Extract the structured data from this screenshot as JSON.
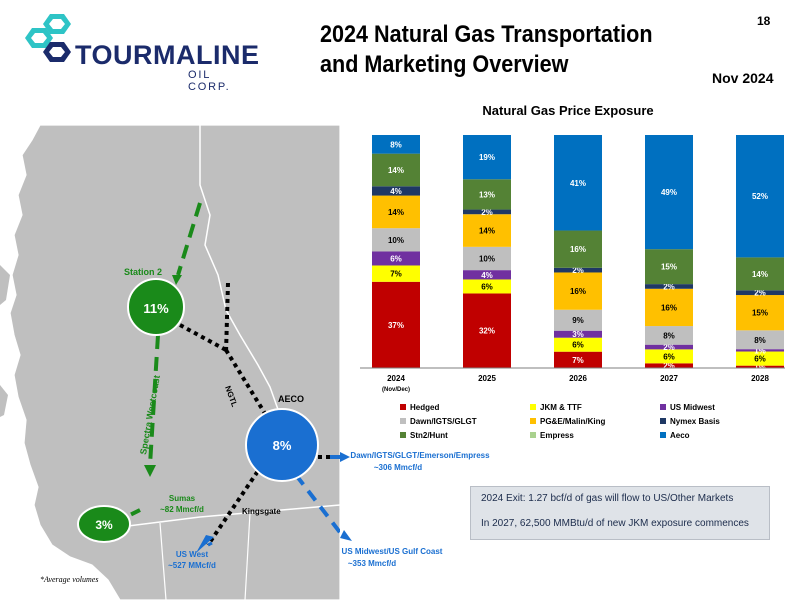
{
  "header": {
    "title_line1": "2024 Natural Gas Transportation",
    "title_line2": "and Marketing Overview",
    "page_number": "18",
    "date": "Nov 2024"
  },
  "logo": {
    "name": "TOURMALINE",
    "sub": "OIL CORP."
  },
  "map": {
    "station2_label": "Station 2",
    "station2_pct": "11%",
    "aeco_label": "AECO",
    "aeco_pct": "8%",
    "sumas_pct": "3%",
    "spectra_label": "Spectra Westcoast",
    "ngtl_label": "NGTL",
    "kingsgate_label": "Kingsgate",
    "sumas_label_line1": "Sumas",
    "sumas_label_line2": "~82 Mmcf/d",
    "uswest_line1": "US West",
    "uswest_line2": "~527 MMcf/d",
    "usmidwest_line1": "US Midwest/US Gulf Coast",
    "usmidwest_line2": "~353 Mmcf/d",
    "dawn_line1": "Dawn/IGTS/GLGT/Emerson/Empress",
    "dawn_line2": "~306 Mmcf/d",
    "colors": {
      "land": "#bfbfbf",
      "water": "#ffffff",
      "green": "#1a8a1a",
      "blue": "#1a6fd1",
      "black": "#000000"
    }
  },
  "chart_data": {
    "type": "bar",
    "title": "Natural Gas Price Exposure",
    "categories": [
      "2024",
      "2025",
      "2026",
      "2027",
      "2028"
    ],
    "category_sublabels": [
      "(Nov/Dec)",
      "",
      "",
      "",
      ""
    ],
    "ylim": [
      0,
      100
    ],
    "stacked": true,
    "series": [
      {
        "name": "Hedged",
        "color": "#c00000",
        "values": [
          37,
          32,
          7,
          2,
          1
        ],
        "labels": [
          "37%",
          "32%",
          "7%",
          "2%",
          "1%"
        ]
      },
      {
        "name": "JKM & TTF",
        "color": "#ffff00",
        "values": [
          7,
          6,
          6,
          6,
          6
        ],
        "labels": [
          "7%",
          "6%",
          "6%",
          "6%",
          "6%"
        ]
      },
      {
        "name": "US Midwest",
        "color": "#7030a0",
        "values": [
          6,
          4,
          3,
          2,
          1
        ],
        "labels": [
          "6%",
          "4%",
          "3%",
          "2%",
          "1%"
        ]
      },
      {
        "name": "Dawn/IGTS/GLGT",
        "color": "#bfbfbf",
        "values": [
          10,
          10,
          9,
          8,
          8
        ],
        "labels": [
          "10%",
          "10%",
          "9%",
          "8%",
          "8%"
        ]
      },
      {
        "name": "PG&E/Malin/King",
        "color": "#ffc000",
        "values": [
          14,
          14,
          16,
          16,
          15
        ],
        "labels": [
          "14%",
          "14%",
          "16%",
          "16%",
          "15%"
        ]
      },
      {
        "name": "Nymex Basis",
        "color": "#1f3864",
        "values": [
          4,
          2,
          2,
          2,
          2
        ],
        "labels": [
          "4%",
          "2%",
          "2%",
          "2%",
          "2%"
        ]
      },
      {
        "name": "Stn2/Hunt",
        "color": "#548235",
        "values": [
          14,
          13,
          16,
          15,
          14
        ],
        "labels": [
          "14%",
          "13%",
          "16%",
          "15%",
          "14%"
        ]
      },
      {
        "name": "Empress",
        "color": "#a9d18e",
        "values": [
          0,
          0,
          0,
          0,
          0
        ],
        "labels": [
          "",
          "",
          "",
          "",
          ""
        ]
      },
      {
        "name": "Aeco",
        "color": "#0070c0",
        "values": [
          8,
          19,
          41,
          49,
          52
        ],
        "labels": [
          "8%",
          "19%",
          "41%",
          "49%",
          "52%"
        ]
      }
    ],
    "legend": [
      {
        "name": "Hedged",
        "color": "#c00000"
      },
      {
        "name": "JKM & TTF",
        "color": "#ffff00"
      },
      {
        "name": "US Midwest",
        "color": "#7030a0"
      },
      {
        "name": "Dawn/IGTS/GLGT",
        "color": "#bfbfbf"
      },
      {
        "name": "PG&E/Malin/King",
        "color": "#ffc000"
      },
      {
        "name": "Nymex Basis",
        "color": "#1f3864"
      },
      {
        "name": "Stn2/Hunt",
        "color": "#548235"
      },
      {
        "name": "Empress",
        "color": "#a9d18e"
      },
      {
        "name": "Aeco",
        "color": "#0070c0"
      }
    ],
    "legend_position": "bottom",
    "grid": false
  },
  "infobox": {
    "line1": "2024 Exit: 1.27 bcf/d of gas will flow to US/Other Markets",
    "line2": "In 2027, 62,500 MMBtu/d of new JKM exposure commences"
  },
  "footnote": "*Average volumes"
}
